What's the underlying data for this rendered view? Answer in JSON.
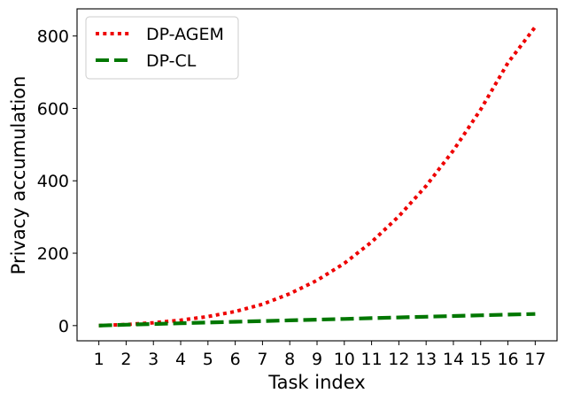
{
  "chart_data": {
    "type": "line",
    "title": "",
    "xlabel": "Task index",
    "ylabel": "Privacy accumulation",
    "x": [
      1,
      2,
      3,
      4,
      5,
      6,
      7,
      8,
      9,
      10,
      11,
      12,
      13,
      14,
      15,
      16,
      17
    ],
    "xticks": [
      "1",
      "2",
      "3",
      "4",
      "5",
      "6",
      "7",
      "8",
      "9",
      "10",
      "11",
      "12",
      "13",
      "14",
      "15",
      "16",
      "17"
    ],
    "yticks": [
      "0",
      "200",
      "400",
      "600",
      "800"
    ],
    "xlim": [
      0.2,
      17.8
    ],
    "ylim": [
      -42,
      875
    ],
    "grid": false,
    "legend": "top-left",
    "series": [
      {
        "name": "DP-AGEM",
        "color": "#ee0000",
        "style": "dotted",
        "values": [
          0,
          3,
          8,
          15,
          25,
          39,
          59,
          88,
          125,
          172,
          231,
          302,
          386,
          484,
          597,
          726,
          825
        ]
      },
      {
        "name": "DP-CL",
        "color": "#007700",
        "style": "dashed",
        "values": [
          0,
          2.5,
          4.5,
          6.5,
          8.5,
          10.5,
          12.5,
          14.5,
          16.5,
          18.5,
          20.5,
          22.5,
          24.5,
          26.5,
          28.5,
          30.5,
          32
        ]
      }
    ]
  }
}
